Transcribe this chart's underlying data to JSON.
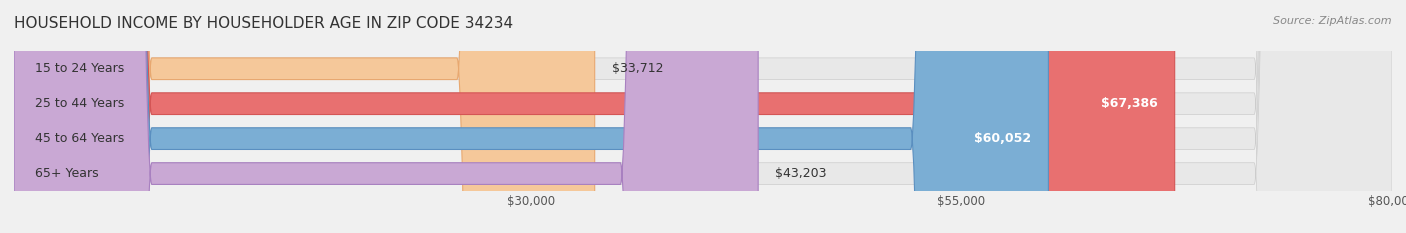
{
  "title": "HOUSEHOLD INCOME BY HOUSEHOLDER AGE IN ZIP CODE 34234",
  "source": "Source: ZipAtlas.com",
  "categories": [
    "15 to 24 Years",
    "25 to 44 Years",
    "45 to 64 Years",
    "65+ Years"
  ],
  "values": [
    33712,
    67386,
    60052,
    43203
  ],
  "labels": [
    "$33,712",
    "$67,386",
    "$60,052",
    "$43,203"
  ],
  "bar_colors": [
    "#f5c89a",
    "#e87070",
    "#7baed4",
    "#c9a8d4"
  ],
  "bar_edge_colors": [
    "#e8a870",
    "#d45555",
    "#5a8fc0",
    "#a880c0"
  ],
  "label_colors": [
    "#555555",
    "#ffffff",
    "#ffffff",
    "#555555"
  ],
  "xlim": [
    0,
    80000
  ],
  "xticks": [
    30000,
    55000,
    80000
  ],
  "xtick_labels": [
    "$30,000",
    "$55,000",
    "$80,000"
  ],
  "background_color": "#f0f0f0",
  "bar_bg_color": "#e8e8e8",
  "title_fontsize": 11,
  "source_fontsize": 8,
  "label_fontsize": 9,
  "tick_fontsize": 8.5,
  "bar_height": 0.62,
  "figsize": [
    14.06,
    2.33
  ],
  "dpi": 100
}
